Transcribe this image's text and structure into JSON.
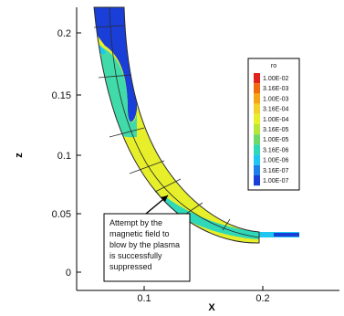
{
  "plot": {
    "x_axis_label": "X",
    "z_axis_label": "z",
    "x_ticks": [
      "0.1",
      "0.2"
    ],
    "z_ticks": [
      "0.2",
      "0.15",
      "0.1",
      "0.05",
      "0"
    ]
  },
  "legend": {
    "title": "ro",
    "levels": [
      "1.00E-02",
      "3.16E-03",
      "1.00E-03",
      "3.16E-04",
      "1.00E-04",
      "3.16E-05",
      "1.00E-05",
      "3.16E-06",
      "1.00E-06",
      "3.16E-07",
      "1.00E-07"
    ],
    "colors": [
      "#e0221a",
      "#f06a10",
      "#f5a41a",
      "#f3d02a",
      "#e6ef2a",
      "#b6e63a",
      "#6fd86a",
      "#2fd8b8",
      "#1fc6ef",
      "#1f7fe8",
      "#1a3fd8"
    ]
  },
  "annotation": {
    "lines": [
      "Attempt by the",
      "magnetic field to",
      "blow by the plasma",
      "is successfully",
      "suppressed"
    ]
  },
  "colors": {
    "low_density": "#1a3fd8",
    "mid_density": "#2fd8b8",
    "high_density": "#e6ef2a",
    "hot_spot": "#f5a41a",
    "grid_line": "#2a2a2a"
  }
}
